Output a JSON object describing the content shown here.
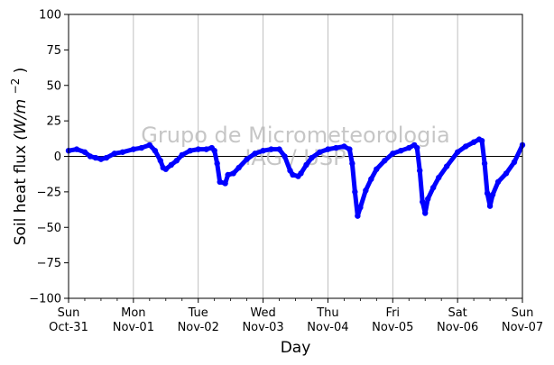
{
  "chart_data": {
    "type": "line",
    "xlabel": "Day",
    "ylabel": "Soil heat flux",
    "ylabel_unit": "(W/m",
    "ylabel_unit_exp": "−2",
    "ylabel_unit_close": ")",
    "ylim": [
      -100,
      100
    ],
    "yticks": [
      100,
      75,
      50,
      25,
      0,
      -25,
      -50,
      -75,
      -100
    ],
    "ytick_labels": [
      "100",
      "75",
      "50",
      "25",
      "0",
      "−25",
      "−50",
      "−75",
      "−100"
    ],
    "xlim": [
      "2021-10-31 00:00",
      "2021-11-07 00:00"
    ],
    "xticks": [
      {
        "date": "2021-10-31",
        "day": "Sun",
        "date_label": "Oct-31"
      },
      {
        "date": "2021-11-01",
        "day": "Mon",
        "date_label": "Nov-01"
      },
      {
        "date": "2021-11-02",
        "day": "Tue",
        "date_label": "Nov-02"
      },
      {
        "date": "2021-11-03",
        "day": "Wed",
        "date_label": "Nov-03"
      },
      {
        "date": "2021-11-04",
        "day": "Thu",
        "date_label": "Nov-04"
      },
      {
        "date": "2021-11-05",
        "day": "Fri",
        "date_label": "Nov-05"
      },
      {
        "date": "2021-11-06",
        "day": "Sat",
        "date_label": "Nov-06"
      },
      {
        "date": "2021-11-07",
        "day": "Sun",
        "date_label": "Nov-07"
      }
    ],
    "grid": "vertical at major ticks",
    "zero_line": true,
    "series": [
      {
        "color": "#0000ff",
        "marker": "circle",
        "points": [
          [
            "2021-10-31 00:00",
            4
          ],
          [
            "2021-10-31 03:00",
            5
          ],
          [
            "2021-10-31 06:00",
            3
          ],
          [
            "2021-10-31 08:00",
            0
          ],
          [
            "2021-10-31 10:00",
            -1
          ],
          [
            "2021-10-31 12:00",
            -2
          ],
          [
            "2021-10-31 14:00",
            -1
          ],
          [
            "2021-10-31 17:00",
            2
          ],
          [
            "2021-10-31 20:00",
            3
          ],
          [
            "2021-11-01 00:00",
            5
          ],
          [
            "2021-11-01 03:00",
            6
          ],
          [
            "2021-11-01 06:00",
            8
          ],
          [
            "2021-11-01 08:00",
            4
          ],
          [
            "2021-11-01 10:00",
            -3
          ],
          [
            "2021-11-01 11:00",
            -8
          ],
          [
            "2021-11-01 12:00",
            -9
          ],
          [
            "2021-11-01 14:00",
            -6
          ],
          [
            "2021-11-01 16:00",
            -3
          ],
          [
            "2021-11-01 18:00",
            1
          ],
          [
            "2021-11-01 21:00",
            4
          ],
          [
            "2021-11-02 00:00",
            5
          ],
          [
            "2021-11-02 03:00",
            5
          ],
          [
            "2021-11-02 05:00",
            6
          ],
          [
            "2021-11-02 06:00",
            4
          ],
          [
            "2021-11-02 07:00",
            -5
          ],
          [
            "2021-11-02 08:00",
            -18
          ],
          [
            "2021-11-02 10:00",
            -19
          ],
          [
            "2021-11-02 11:00",
            -13
          ],
          [
            "2021-11-02 13:00",
            -12
          ],
          [
            "2021-11-02 15:00",
            -8
          ],
          [
            "2021-11-02 18:00",
            -2
          ],
          [
            "2021-11-02 21:00",
            2
          ],
          [
            "2021-11-03 00:00",
            4
          ],
          [
            "2021-11-03 03:00",
            5
          ],
          [
            "2021-11-03 06:00",
            5
          ],
          [
            "2021-11-03 08:00",
            0
          ],
          [
            "2021-11-03 10:00",
            -10
          ],
          [
            "2021-11-03 11:00",
            -13
          ],
          [
            "2021-11-03 13:00",
            -14
          ],
          [
            "2021-11-03 14:00",
            -12
          ],
          [
            "2021-11-03 16:00",
            -6
          ],
          [
            "2021-11-03 18:00",
            -1
          ],
          [
            "2021-11-03 21:00",
            3
          ],
          [
            "2021-11-04 00:00",
            5
          ],
          [
            "2021-11-04 03:00",
            6
          ],
          [
            "2021-11-04 06:00",
            7
          ],
          [
            "2021-11-04 08:00",
            5
          ],
          [
            "2021-11-04 09:00",
            -5
          ],
          [
            "2021-11-04 10:00",
            -25
          ],
          [
            "2021-11-04 11:00",
            -42
          ],
          [
            "2021-11-04 12:00",
            -36
          ],
          [
            "2021-11-04 14:00",
            -24
          ],
          [
            "2021-11-04 16:00",
            -16
          ],
          [
            "2021-11-04 18:00",
            -9
          ],
          [
            "2021-11-04 21:00",
            -3
          ],
          [
            "2021-11-05 00:00",
            2
          ],
          [
            "2021-11-05 03:00",
            4
          ],
          [
            "2021-11-05 06:00",
            6
          ],
          [
            "2021-11-05 08:00",
            8
          ],
          [
            "2021-11-05 09:00",
            6
          ],
          [
            "2021-11-05 10:00",
            -10
          ],
          [
            "2021-11-05 11:00",
            -32
          ],
          [
            "2021-11-05 12:00",
            -40
          ],
          [
            "2021-11-05 13:00",
            -30
          ],
          [
            "2021-11-05 15:00",
            -22
          ],
          [
            "2021-11-05 17:00",
            -15
          ],
          [
            "2021-11-05 20:00",
            -7
          ],
          [
            "2021-11-06 00:00",
            3
          ],
          [
            "2021-11-06 03:00",
            7
          ],
          [
            "2021-11-06 06:00",
            10
          ],
          [
            "2021-11-06 08:00",
            12
          ],
          [
            "2021-11-06 09:00",
            11
          ],
          [
            "2021-11-06 10:00",
            -5
          ],
          [
            "2021-11-06 11:00",
            -26
          ],
          [
            "2021-11-06 12:00",
            -35
          ],
          [
            "2021-11-06 13:00",
            -27
          ],
          [
            "2021-11-06 15:00",
            -18
          ],
          [
            "2021-11-06 18:00",
            -12
          ],
          [
            "2021-11-06 21:00",
            -4
          ],
          [
            "2021-11-07 00:00",
            8
          ]
        ]
      }
    ],
    "watermark": [
      "Grupo de Micrometeorologia",
      "IAG / USP"
    ]
  }
}
